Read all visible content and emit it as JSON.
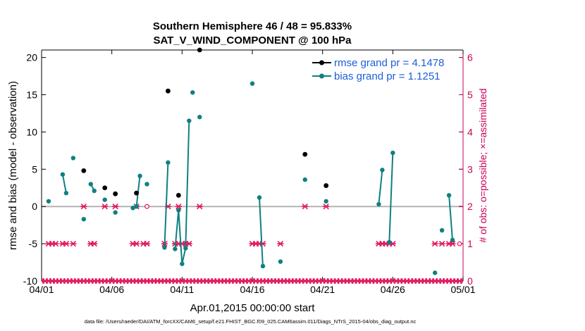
{
  "colors": {
    "rmse": "#000000",
    "bias": "#0e8080",
    "obs": "#e0175e",
    "right_axis": "#c8005a",
    "legend_text": "#1a5fd6",
    "zero_line": "#b3b3b3"
  },
  "chart_data": {
    "type": "line",
    "title": "Southern Hemisphere 46 / 48 = 95.833%",
    "subtitle": "SAT_V_WIND_COMPONENT @ 100 hPa",
    "xlabel": "Apr.01,2015 00:00:00 start",
    "ylabel": "rmse and bias (model - observation)",
    "ylabel_right": "# of obs: o=possible; ×=assimilated",
    "xlim": [
      0,
      30
    ],
    "ylim": [
      -10,
      21
    ],
    "ylim_right": [
      0,
      6.2
    ],
    "x_ticks": [
      0,
      5,
      10,
      15,
      20,
      25,
      30
    ],
    "x_tick_labels": [
      "04/01",
      "04/06",
      "04/11",
      "04/16",
      "04/21",
      "04/26",
      "05/01"
    ],
    "y_ticks": [
      -10,
      -5,
      0,
      5,
      10,
      15,
      20
    ],
    "y_tick_labels": [
      "-10",
      "-5",
      "0",
      "5",
      "10",
      "15",
      "20"
    ],
    "y_ticks_right": [
      0,
      1,
      2,
      3,
      4,
      5,
      6
    ],
    "y_tick_labels_right": [
      "0",
      "1",
      "2",
      "3",
      "4",
      "5",
      "6"
    ],
    "series": [
      {
        "name": "rmse grand pr = 4.1478",
        "key": "rmse",
        "points": [
          [
            3.0,
            4.8
          ],
          [
            4.5,
            2.5
          ],
          [
            5.25,
            1.7
          ],
          [
            6.75,
            1.8
          ],
          [
            9.0,
            15.5
          ],
          [
            9.75,
            1.5
          ],
          [
            11.25,
            21.0
          ],
          [
            18.75,
            7.0
          ],
          [
            20.25,
            2.8
          ]
        ]
      },
      {
        "name": "bias grand pr = 1.1251",
        "key": "bias",
        "segments": [
          [
            [
              0.5,
              0.7
            ]
          ],
          [
            [
              1.5,
              4.3
            ],
            [
              1.75,
              1.8
            ]
          ],
          [
            [
              2.25,
              6.5
            ]
          ],
          [
            [
              3.0,
              -1.7
            ]
          ],
          [
            [
              3.5,
              3.0
            ],
            [
              3.75,
              2.1
            ]
          ],
          [
            [
              4.5,
              0.9
            ]
          ],
          [
            [
              5.25,
              -0.8
            ]
          ],
          [
            [
              6.5,
              -0.2
            ],
            [
              6.75,
              0.0
            ],
            [
              7.0,
              4.1
            ]
          ],
          [
            [
              7.5,
              3.0
            ]
          ],
          [
            [
              8.75,
              -5.5
            ],
            [
              9.0,
              5.9
            ]
          ],
          [
            [
              9.5,
              -5.7
            ],
            [
              9.75,
              -0.5
            ],
            [
              10.0,
              -7.7
            ],
            [
              10.25,
              -5.6
            ],
            [
              10.5,
              11.5
            ]
          ],
          [
            [
              10.75,
              15.3
            ]
          ],
          [
            [
              11.25,
              12.0
            ]
          ],
          [
            [
              15.0,
              16.5
            ]
          ],
          [
            [
              15.5,
              1.2
            ],
            [
              15.75,
              -8.0
            ]
          ],
          [
            [
              17.0,
              -7.4
            ]
          ],
          [
            [
              18.75,
              3.6
            ]
          ],
          [
            [
              20.25,
              0.7
            ]
          ],
          [
            [
              24.0,
              0.3
            ],
            [
              24.25,
              4.9
            ]
          ],
          [
            [
              24.75,
              -4.8
            ],
            [
              25.0,
              7.2
            ]
          ],
          [
            [
              28.0,
              -8.9
            ]
          ],
          [
            [
              28.5,
              -3.2
            ]
          ],
          [
            [
              29.0,
              1.5
            ],
            [
              29.25,
              -4.5
            ]
          ]
        ]
      }
    ],
    "obs_assimilated": [
      [
        0,
        0
      ],
      [
        0.25,
        0
      ],
      [
        0.5,
        0
      ],
      [
        0.75,
        0
      ],
      [
        1,
        0
      ],
      [
        1.25,
        0
      ],
      [
        1.5,
        0
      ],
      [
        1.75,
        0
      ],
      [
        2,
        0
      ],
      [
        2.25,
        0
      ],
      [
        2.5,
        0
      ],
      [
        2.75,
        0
      ],
      [
        3,
        0
      ],
      [
        3.25,
        0
      ],
      [
        3.5,
        0
      ],
      [
        3.75,
        0
      ],
      [
        4,
        0
      ],
      [
        4.25,
        0
      ],
      [
        4.5,
        0
      ],
      [
        4.75,
        0
      ],
      [
        5,
        0
      ],
      [
        5.25,
        0
      ],
      [
        5.5,
        0
      ],
      [
        5.75,
        0
      ],
      [
        6,
        0
      ],
      [
        6.25,
        0
      ],
      [
        6.5,
        0
      ],
      [
        6.75,
        0
      ],
      [
        7,
        0
      ],
      [
        7.25,
        0
      ],
      [
        7.5,
        0
      ],
      [
        7.75,
        0
      ],
      [
        8,
        0
      ],
      [
        8.25,
        0
      ],
      [
        8.5,
        0
      ],
      [
        8.75,
        0
      ],
      [
        9,
        0
      ],
      [
        9.25,
        0
      ],
      [
        9.5,
        0
      ],
      [
        9.75,
        0
      ],
      [
        10,
        0
      ],
      [
        10.25,
        0
      ],
      [
        10.5,
        0
      ],
      [
        10.75,
        0
      ],
      [
        11,
        0
      ],
      [
        11.25,
        0
      ],
      [
        11.5,
        0
      ],
      [
        11.75,
        0
      ],
      [
        12,
        0
      ],
      [
        12.25,
        0
      ],
      [
        12.5,
        0
      ],
      [
        12.75,
        0
      ],
      [
        13,
        0
      ],
      [
        13.25,
        0
      ],
      [
        13.5,
        0
      ],
      [
        13.75,
        0
      ],
      [
        14,
        0
      ],
      [
        14.25,
        0
      ],
      [
        14.5,
        0
      ],
      [
        14.75,
        0
      ],
      [
        15,
        0
      ],
      [
        15.25,
        0
      ],
      [
        15.5,
        0
      ],
      [
        15.75,
        0
      ],
      [
        16,
        0
      ],
      [
        16.25,
        0
      ],
      [
        16.5,
        0
      ],
      [
        16.75,
        0
      ],
      [
        17,
        0
      ],
      [
        17.25,
        0
      ],
      [
        17.5,
        0
      ],
      [
        17.75,
        0
      ],
      [
        18,
        0
      ],
      [
        18.25,
        0
      ],
      [
        18.5,
        0
      ],
      [
        18.75,
        0
      ],
      [
        19,
        0
      ],
      [
        19.25,
        0
      ],
      [
        19.5,
        0
      ],
      [
        19.75,
        0
      ],
      [
        20,
        0
      ],
      [
        20.25,
        0
      ],
      [
        20.5,
        0
      ],
      [
        20.75,
        0
      ],
      [
        21,
        0
      ],
      [
        21.25,
        0
      ],
      [
        21.5,
        0
      ],
      [
        21.75,
        0
      ],
      [
        22,
        0
      ],
      [
        22.25,
        0
      ],
      [
        22.5,
        0
      ],
      [
        22.75,
        0
      ],
      [
        23,
        0
      ],
      [
        23.25,
        0
      ],
      [
        23.5,
        0
      ],
      [
        23.75,
        0
      ],
      [
        24,
        0
      ],
      [
        24.25,
        0
      ],
      [
        24.5,
        0
      ],
      [
        24.75,
        0
      ],
      [
        25,
        0
      ],
      [
        25.25,
        0
      ],
      [
        25.5,
        0
      ],
      [
        25.75,
        0
      ],
      [
        26,
        0
      ],
      [
        26.25,
        0
      ],
      [
        26.5,
        0
      ],
      [
        26.75,
        0
      ],
      [
        27,
        0
      ],
      [
        27.25,
        0
      ],
      [
        27.5,
        0
      ],
      [
        27.75,
        0
      ],
      [
        28,
        0
      ],
      [
        28.25,
        0
      ],
      [
        28.5,
        0
      ],
      [
        28.75,
        0
      ],
      [
        29,
        0
      ],
      [
        29.25,
        0
      ],
      [
        29.5,
        0
      ],
      [
        29.75,
        0
      ],
      [
        30,
        0
      ],
      [
        0.5,
        1
      ],
      [
        0.75,
        1
      ],
      [
        1.0,
        1
      ],
      [
        1.5,
        1
      ],
      [
        1.75,
        1
      ],
      [
        2.25,
        1
      ],
      [
        3.5,
        1
      ],
      [
        3.75,
        1
      ],
      [
        6.5,
        1
      ],
      [
        6.75,
        1
      ],
      [
        7.25,
        1
      ],
      [
        7.5,
        1
      ],
      [
        8.75,
        1
      ],
      [
        9.5,
        1
      ],
      [
        9.75,
        1
      ],
      [
        10.0,
        1
      ],
      [
        10.25,
        1
      ],
      [
        10.5,
        1
      ],
      [
        15.0,
        1
      ],
      [
        15.25,
        1
      ],
      [
        15.5,
        1
      ],
      [
        15.75,
        1
      ],
      [
        17.0,
        1
      ],
      [
        24.0,
        1
      ],
      [
        24.25,
        1
      ],
      [
        24.5,
        1
      ],
      [
        24.75,
        1
      ],
      [
        25.0,
        1
      ],
      [
        28.0,
        1
      ],
      [
        28.5,
        1
      ],
      [
        29.0,
        1
      ],
      [
        29.25,
        1
      ],
      [
        3.0,
        2
      ],
      [
        4.5,
        2
      ],
      [
        5.25,
        2
      ],
      [
        6.75,
        2
      ],
      [
        9.0,
        2
      ],
      [
        9.75,
        2
      ],
      [
        11.25,
        2
      ],
      [
        18.75,
        2
      ],
      [
        20.25,
        2
      ]
    ],
    "obs_possible": [
      [
        7.5,
        2
      ],
      [
        29.75,
        1
      ]
    ],
    "legend_position": "top-right"
  },
  "footer": {
    "text": "data file: /Users/raeder/DAI/ATM_forcXX/CAM6_setup/f.e21.FHIST_BGC.f09_025.CAM6assim.011/Diags_NTrS_2015-04/obs_diag_output.nc"
  }
}
